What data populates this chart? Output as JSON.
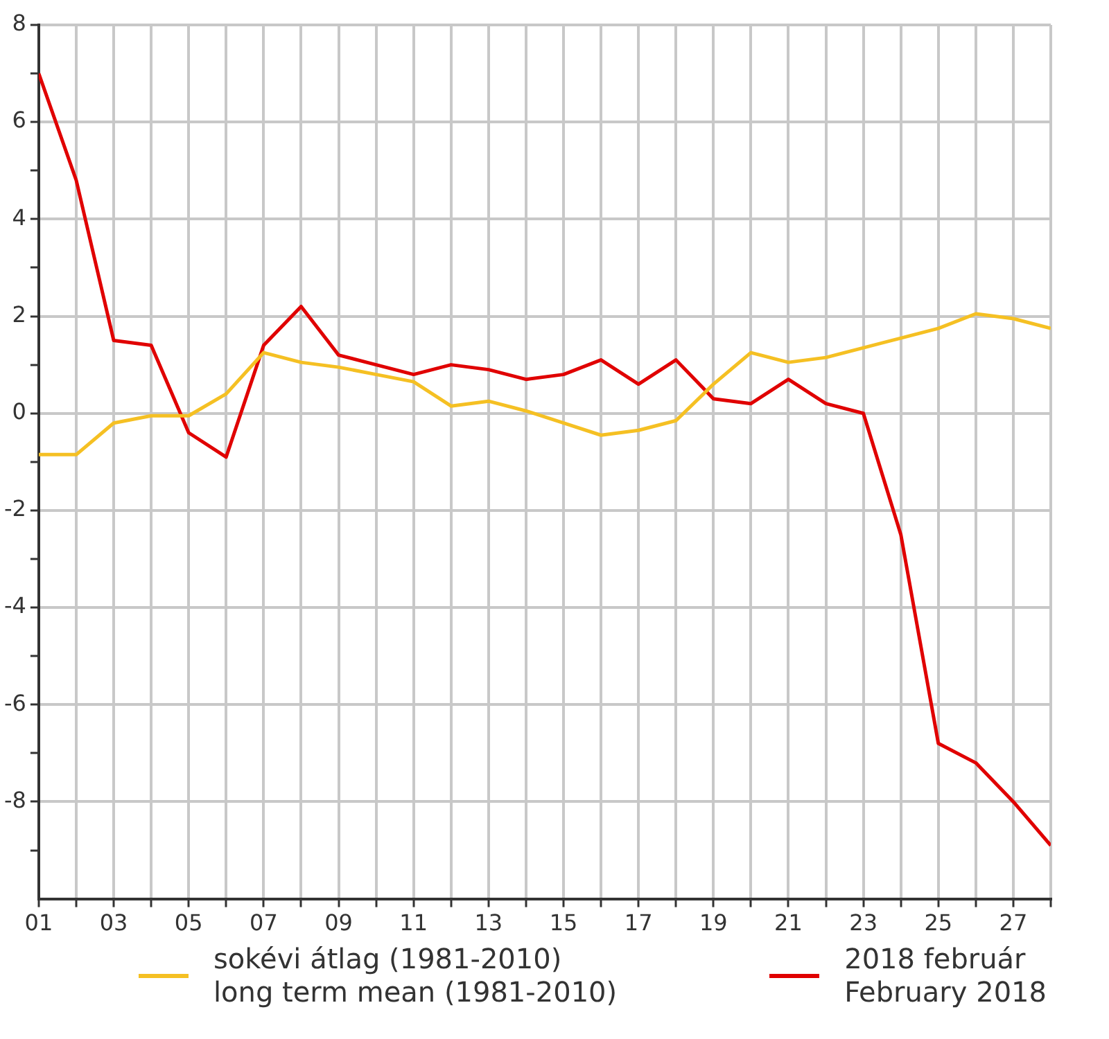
{
  "chart_data": {
    "type": "line",
    "x": [
      1,
      2,
      3,
      4,
      5,
      6,
      7,
      8,
      9,
      10,
      11,
      12,
      13,
      14,
      15,
      16,
      17,
      18,
      19,
      20,
      21,
      22,
      23,
      24,
      25,
      26,
      27,
      28
    ],
    "series": [
      {
        "name": "sokévi átlag (1981-2010)\nlong term mean (1981-2010)",
        "color": "#f5c023",
        "values": [
          -0.85,
          -0.85,
          -0.2,
          -0.05,
          -0.05,
          0.4,
          1.25,
          1.05,
          0.95,
          0.8,
          0.65,
          0.15,
          0.25,
          0.05,
          -0.2,
          -0.45,
          -0.35,
          -0.15,
          0.6,
          1.25,
          1.05,
          1.15,
          1.35,
          1.55,
          1.75,
          2.05,
          1.95,
          1.75
        ]
      },
      {
        "name": "2018 február\nFebruary 2018",
        "color": "#e00000",
        "values": [
          7.0,
          4.8,
          1.5,
          1.4,
          -0.4,
          -0.9,
          1.4,
          2.2,
          1.2,
          1.0,
          0.8,
          1.0,
          0.9,
          0.7,
          0.8,
          1.1,
          0.6,
          1.1,
          0.3,
          0.2,
          0.7,
          0.2,
          0.0,
          -2.5,
          -6.8,
          -7.2,
          -8.0,
          -8.9
        ]
      }
    ],
    "xlim": [
      1,
      28
    ],
    "xticks": [
      {
        "value": 1,
        "label": "01"
      },
      {
        "value": 2,
        "label": null
      },
      {
        "value": 3,
        "label": "03"
      },
      {
        "value": 4,
        "label": null
      },
      {
        "value": 5,
        "label": "05"
      },
      {
        "value": 6,
        "label": null
      },
      {
        "value": 7,
        "label": "07"
      },
      {
        "value": 8,
        "label": null
      },
      {
        "value": 9,
        "label": "09"
      },
      {
        "value": 10,
        "label": null
      },
      {
        "value": 11,
        "label": "11"
      },
      {
        "value": 12,
        "label": null
      },
      {
        "value": 13,
        "label": "13"
      },
      {
        "value": 14,
        "label": null
      },
      {
        "value": 15,
        "label": "15"
      },
      {
        "value": 16,
        "label": null
      },
      {
        "value": 17,
        "label": "17"
      },
      {
        "value": 18,
        "label": null
      },
      {
        "value": 19,
        "label": "19"
      },
      {
        "value": 20,
        "label": null
      },
      {
        "value": 21,
        "label": "21"
      },
      {
        "value": 22,
        "label": null
      },
      {
        "value": 23,
        "label": "23"
      },
      {
        "value": 24,
        "label": null
      },
      {
        "value": 25,
        "label": "25"
      },
      {
        "value": 26,
        "label": null
      },
      {
        "value": 27,
        "label": "27"
      },
      {
        "value": 28,
        "label": null
      }
    ],
    "ylim": [
      -10,
      8
    ],
    "yticks": [
      {
        "value": -9,
        "label": null
      },
      -8,
      {
        "value": -7,
        "label": null
      },
      -6,
      {
        "value": -5,
        "label": null
      },
      -4,
      {
        "value": -3,
        "label": null
      },
      -2,
      {
        "value": -1,
        "label": null
      },
      0,
      {
        "value": 1,
        "label": null
      },
      2,
      {
        "value": 3,
        "label": null
      },
      4,
      {
        "value": 5,
        "label": null
      },
      6,
      {
        "value": 7,
        "label": null
      },
      8
    ],
    "grid": true,
    "legend": "bottom",
    "marker": "none",
    "line_style": "solid"
  }
}
